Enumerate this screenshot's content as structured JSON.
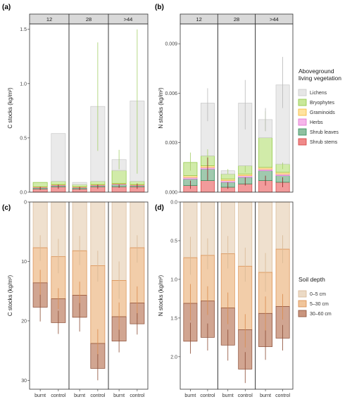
{
  "legends": {
    "vegetation": {
      "title_lines": [
        "Aboveground",
        "living vegetation"
      ],
      "items": [
        {
          "key": "lichens",
          "label": "Lichens",
          "fill": "#e6e6e6",
          "stroke": "#c8c8c8"
        },
        {
          "key": "bryophytes",
          "label": "Bryophytes",
          "fill": "#c9e89a",
          "stroke": "#8cc63f"
        },
        {
          "key": "graminoids",
          "label": "Graminoids",
          "fill": "#ffe3a0",
          "stroke": "#f2b632"
        },
        {
          "key": "herbs",
          "label": "Herbs",
          "fill": "#f6b6ea",
          "stroke": "#e070cf"
        },
        {
          "key": "shrub_leaves",
          "label": "Shrub leaves",
          "fill": "#8fc0a0",
          "stroke": "#2e8a57"
        },
        {
          "key": "shrub_stems",
          "label": "Shrub stems",
          "fill": "#f08a8a",
          "stroke": "#d43c3c"
        }
      ]
    },
    "soil": {
      "title_lines": [
        "Soil depth"
      ],
      "items": [
        {
          "key": "d0_5",
          "label": "0–5 cm",
          "fill": "#ecdac5",
          "stroke": "#d8b894"
        },
        {
          "key": "d5_30",
          "label": "5–30 cm",
          "fill": "#f0c49a",
          "stroke": "#d98b4c"
        },
        {
          "key": "d30_60",
          "label": "30–60 cm",
          "fill": "#c9957e",
          "stroke": "#8a4b33"
        }
      ]
    }
  },
  "chart_data": [
    {
      "panel": "(a)",
      "type": "bar",
      "stacked": true,
      "ylabel": "C stocks (kg/m²)",
      "ylim": [
        0,
        1.55
      ],
      "yticks": [
        0.0,
        0.5,
        1.0,
        1.5
      ],
      "ytick_labels": [
        "0.0",
        "0.5",
        "1.0",
        "1.5"
      ],
      "facets": [
        "12",
        "28",
        ">44"
      ],
      "categories": [
        "burnt",
        "control"
      ],
      "series": [
        {
          "name": "Shrub stems",
          "key": "shrub_stems",
          "values": [
            [
              0.03,
              0.05
            ],
            [
              0.03,
              0.05
            ],
            [
              0.05,
              0.05
            ]
          ]
        },
        {
          "name": "Shrub leaves",
          "key": "shrub_leaves",
          "values": [
            [
              0.01,
              0.01
            ],
            [
              0.01,
              0.01
            ],
            [
              0.02,
              0.01
            ]
          ]
        },
        {
          "name": "Herbs",
          "key": "herbs",
          "values": [
            [
              0.005,
              0.005
            ],
            [
              0.005,
              0.005
            ],
            [
              0.005,
              0.005
            ]
          ]
        },
        {
          "name": "Graminoids",
          "key": "graminoids",
          "values": [
            [
              0.005,
              0.005
            ],
            [
              0.005,
              0.005
            ],
            [
              0.005,
              0.005
            ]
          ]
        },
        {
          "name": "Bryophytes",
          "key": "bryophytes",
          "values": [
            [
              0.04,
              0.03
            ],
            [
              0.02,
              0.03
            ],
            [
              0.12,
              0.03
            ]
          ]
        },
        {
          "name": "Lichens",
          "key": "lichens",
          "values": [
            [
              0.0,
              0.44
            ],
            [
              0.02,
              0.69
            ],
            [
              0.1,
              0.74
            ]
          ]
        }
      ],
      "error_bars": {
        "total": [
          [
            [
              0.1,
              0.1
            ],
            [
              0.1,
              0.1
            ]
          ],
          [
            [
              0.09,
              0.09
            ],
            [
              0.38,
              1.38
            ]
          ],
          [
            [
              0.21,
              0.39
            ],
            [
              0.17,
              1.5
            ]
          ]
        ],
        "bottom": [
          [
            [
              0.02,
              0.05
            ],
            [
              0.03,
              0.07
            ]
          ],
          [
            [
              0.02,
              0.05
            ],
            [
              0.03,
              0.07
            ]
          ],
          [
            [
              0.04,
              0.07
            ],
            [
              0.03,
              0.08
            ]
          ]
        ]
      }
    },
    {
      "panel": "(b)",
      "type": "bar",
      "stacked": true,
      "ylabel": "N stocks (kg/m²)",
      "ylim": [
        0,
        0.0102
      ],
      "yticks": [
        0.0,
        0.003,
        0.006,
        0.009
      ],
      "ytick_labels": [
        "0.000",
        "0.003",
        "0.006",
        "0.009"
      ],
      "facets": [
        "12",
        "28",
        ">44"
      ],
      "categories": [
        "burnt",
        "control"
      ],
      "series": [
        {
          "name": "Shrub stems",
          "key": "shrub_stems",
          "values": [
            [
              0.0004,
              0.0007
            ],
            [
              0.0003,
              0.0005
            ],
            [
              0.0007,
              0.0006
            ]
          ]
        },
        {
          "name": "Shrub leaves",
          "key": "shrub_leaves",
          "values": [
            [
              0.0004,
              0.0007
            ],
            [
              0.0003,
              0.0004
            ],
            [
              0.0006,
              0.0004
            ]
          ]
        },
        {
          "name": "Herbs",
          "key": "herbs",
          "values": [
            [
              0.0001,
              0.0001
            ],
            [
              0.0001,
              0.0001
            ],
            [
              0.0001,
              0.0001
            ]
          ]
        },
        {
          "name": "Graminoids",
          "key": "graminoids",
          "values": [
            [
              0.0001,
              0.0001
            ],
            [
              0.0001,
              0.0001
            ],
            [
              0.0001,
              0.0001
            ]
          ]
        },
        {
          "name": "Bryophytes",
          "key": "bryophytes",
          "values": [
            [
              0.0008,
              0.0006
            ],
            [
              0.0003,
              0.0005
            ],
            [
              0.0018,
              0.0005
            ]
          ]
        },
        {
          "name": "Lichens",
          "key": "lichens",
          "values": [
            [
              0.0,
              0.0032
            ],
            [
              0.0002,
              0.0038
            ],
            [
              0.0011,
              0.0048
            ]
          ]
        }
      ],
      "error_bars": {
        "total": [
          [
            [
              0.0013,
              0.0024
            ],
            [
              0.0016,
              0.0026
            ]
          ],
          [
            [
              0.0011,
              0.0014
            ],
            [
              0.0012,
              0.0016
            ]
          ],
          [
            [
              0.0037,
              0.0049
            ],
            [
              0.0014,
              0.0018
            ]
          ]
        ],
        "lichens": [
          [
            null,
            [
              0.0043,
              0.0063
            ]
          ],
          [
            null,
            [
              0.0038,
              0.0068
            ]
          ],
          [
            [
              0.0037,
              0.0051
            ],
            [
              0.0051,
              0.0082
            ]
          ]
        ],
        "bottom": [
          [
            [
              0.0002,
              0.0007
            ],
            [
              0.0007,
              0.0021
            ]
          ],
          [
            [
              0.0002,
              0.0006
            ],
            [
              0.0004,
              0.0009
            ]
          ],
          [
            [
              0.0004,
              0.001
            ],
            [
              0.0003,
              0.0009
            ]
          ]
        ]
      }
    },
    {
      "panel": "(c)",
      "type": "bar",
      "stacked": true,
      "reversed_axis": true,
      "ylabel": "C stocks (kg/m²)",
      "ylim": [
        0,
        31.5
      ],
      "yticks": [
        0,
        10,
        20,
        30
      ],
      "ytick_labels": [
        "0",
        "10",
        "20",
        "30"
      ],
      "facets": [
        "12",
        "28",
        ">44"
      ],
      "categories": [
        "burnt",
        "control"
      ],
      "series": [
        {
          "name": "0–5 cm",
          "key": "d0_5",
          "values": [
            [
              7.7,
              9.2
            ],
            [
              8.2,
              10.7
            ],
            [
              13.2,
              7.7
            ]
          ]
        },
        {
          "name": "5–30 cm",
          "key": "d5_30",
          "values": [
            [
              5.9,
              7.1
            ],
            [
              7.5,
              13.1
            ],
            [
              6.1,
              9.3
            ]
          ]
        },
        {
          "name": "30–60 cm",
          "key": "d30_60",
          "values": [
            [
              4.1,
              4.0
            ],
            [
              3.7,
              4.2
            ],
            [
              4.1,
              3.5
            ]
          ]
        }
      ],
      "error_bars": {
        "d0_5": [
          [
            [
              5.6,
              9.9
            ],
            [
              6.2,
              12.0
            ]
          ],
          [
            [
              5.7,
              10.6
            ],
            [
              8.2,
              13.4
            ]
          ],
          [
            [
              10.0,
              16.3
            ],
            [
              5.6,
              10.2
            ]
          ]
        ],
        "d5_30": [
          [
            [
              11.4,
              15.8
            ],
            [
              14.5,
              18.0
            ]
          ],
          [
            [
              13.4,
              18.1
            ],
            [
              21.4,
              25.9
            ]
          ],
          [
            [
              16.9,
              21.6
            ],
            [
              14.2,
              19.7
            ]
          ]
        ],
        "d30_60": [
          [
            [
              15.6,
              20.1
            ],
            [
              18.3,
              22.2
            ]
          ],
          [
            [
              17.0,
              21.8
            ],
            [
              25.6,
              30.0
            ]
          ],
          [
            [
              21.5,
              25.3
            ],
            [
              18.7,
              22.3
            ]
          ]
        ]
      }
    },
    {
      "panel": "(d)",
      "type": "bar",
      "stacked": true,
      "reversed_axis": true,
      "ylabel": "N stocks (kg/m²)",
      "ylim": [
        0,
        2.42
      ],
      "yticks": [
        0.0,
        0.5,
        1.0,
        1.5,
        2.0
      ],
      "ytick_labels": [
        "0.0",
        "0.5",
        "1.0",
        "1.5",
        "2.0"
      ],
      "facets": [
        "12",
        "28",
        ">44"
      ],
      "categories": [
        "burnt",
        "control"
      ],
      "series": [
        {
          "name": "0–5 cm",
          "key": "d0_5",
          "values": [
            [
              0.72,
              0.69
            ],
            [
              0.67,
              0.83
            ],
            [
              0.91,
              0.61
            ]
          ]
        },
        {
          "name": "5–30 cm",
          "key": "d5_30",
          "values": [
            [
              0.59,
              0.59
            ],
            [
              0.7,
              0.82
            ],
            [
              0.53,
              0.74
            ]
          ]
        },
        {
          "name": "30–60 cm",
          "key": "d30_60",
          "values": [
            [
              0.49,
              0.47
            ],
            [
              0.48,
              0.51
            ],
            [
              0.43,
              0.41
            ]
          ]
        }
      ],
      "error_bars": {
        "d0_5": [
          [
            [
              0.45,
              0.94
            ],
            [
              0.47,
              0.87
            ]
          ],
          [
            [
              0.44,
              0.86
            ],
            [
              0.59,
              1.03
            ]
          ],
          [
            [
              0.66,
              1.16
            ],
            [
              0.43,
              0.79
            ]
          ]
        ],
        "d5_30": [
          [
            [
              1.06,
              1.53
            ],
            [
              1.09,
              1.46
            ]
          ],
          [
            [
              1.17,
              1.58
            ],
            [
              1.45,
              1.88
            ]
          ],
          [
            [
              1.22,
              1.66
            ],
            [
              1.19,
              1.52
            ]
          ]
        ],
        "d30_60": [
          [
            [
              1.56,
              1.96
            ],
            [
              1.57,
              1.92
            ]
          ],
          [
            [
              1.65,
              2.05
            ],
            [
              1.94,
              2.34
            ]
          ],
          [
            [
              1.66,
              2.04
            ],
            [
              1.59,
              1.92
            ]
          ]
        ]
      }
    }
  ]
}
